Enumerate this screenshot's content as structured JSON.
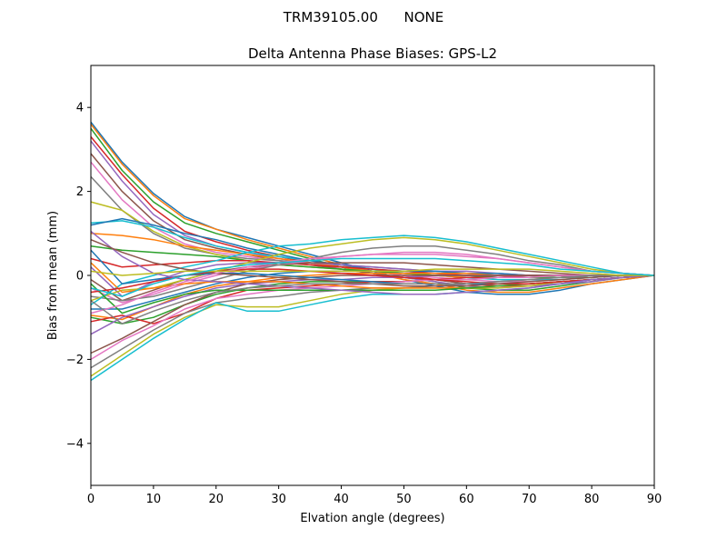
{
  "chart_data": {
    "type": "line",
    "suptitle": "TRM39105.00      NONE",
    "title": "Delta Antenna Phase Biases: GPS-L2",
    "xlabel": "Elvation angle (degrees)",
    "ylabel": "Bias from mean (mm)",
    "xlim": [
      0,
      90
    ],
    "ylim": [
      -5,
      5
    ],
    "xticks": [
      0,
      10,
      20,
      30,
      40,
      50,
      60,
      70,
      80,
      90
    ],
    "yticks": [
      -4,
      -2,
      0,
      2,
      4
    ],
    "ytick_labels": [
      "−4",
      "−2",
      "0",
      "2",
      "4"
    ],
    "grid": false,
    "legend": "none",
    "x": [
      0,
      5,
      10,
      15,
      20,
      25,
      30,
      35,
      40,
      45,
      50,
      55,
      60,
      65,
      70,
      75,
      80,
      85,
      90
    ],
    "series": [
      {
        "values": [
          3.65,
          2.7,
          1.95,
          1.4,
          1.1,
          0.9,
          0.7,
          0.5,
          0.3,
          0.1,
          -0.1,
          -0.25,
          -0.4,
          -0.45,
          -0.45,
          -0.35,
          -0.2,
          -0.1,
          0.0
        ]
      },
      {
        "values": [
          3.6,
          2.65,
          1.9,
          1.35,
          1.1,
          0.85,
          0.65,
          0.45,
          0.25,
          0.05,
          -0.1,
          -0.2,
          -0.35,
          -0.4,
          -0.4,
          -0.3,
          -0.2,
          -0.1,
          0.0
        ]
      },
      {
        "values": [
          3.5,
          2.5,
          1.75,
          1.25,
          1.0,
          0.8,
          0.6,
          0.4,
          0.2,
          0.05,
          -0.05,
          -0.15,
          -0.3,
          -0.35,
          -0.35,
          -0.25,
          -0.15,
          -0.05,
          0.0
        ]
      },
      {
        "values": [
          3.3,
          2.4,
          1.6,
          1.05,
          0.8,
          0.6,
          0.45,
          0.3,
          0.2,
          0.1,
          0.0,
          -0.1,
          -0.2,
          -0.25,
          -0.25,
          -0.2,
          -0.1,
          -0.05,
          0.0
        ]
      },
      {
        "values": [
          3.2,
          2.25,
          1.45,
          0.95,
          0.7,
          0.55,
          0.4,
          0.3,
          0.15,
          0.05,
          -0.05,
          -0.15,
          -0.25,
          -0.3,
          -0.25,
          -0.2,
          -0.15,
          -0.05,
          0.0
        ]
      },
      {
        "values": [
          2.9,
          2.0,
          1.3,
          0.85,
          0.65,
          0.5,
          0.35,
          0.25,
          0.15,
          0.05,
          -0.05,
          -0.1,
          -0.2,
          -0.2,
          -0.2,
          -0.15,
          -0.1,
          -0.05,
          0.0
        ]
      },
      {
        "values": [
          2.7,
          1.8,
          1.15,
          0.75,
          0.55,
          0.45,
          0.35,
          0.3,
          0.2,
          0.1,
          0.0,
          -0.05,
          -0.1,
          -0.15,
          -0.15,
          -0.1,
          -0.05,
          0.0,
          0.0
        ]
      },
      {
        "values": [
          2.35,
          1.55,
          1.0,
          0.65,
          0.5,
          0.4,
          0.35,
          0.3,
          0.25,
          0.2,
          0.15,
          0.1,
          0.05,
          0.0,
          -0.05,
          -0.05,
          -0.05,
          0.0,
          0.0
        ]
      },
      {
        "values": [
          1.75,
          1.55,
          1.05,
          0.7,
          0.5,
          0.35,
          0.25,
          0.2,
          0.15,
          0.1,
          0.05,
          0.0,
          -0.05,
          -0.05,
          -0.05,
          -0.05,
          0.0,
          0.0,
          0.0
        ]
      },
      {
        "values": [
          1.25,
          1.3,
          1.15,
          0.9,
          0.7,
          0.55,
          0.45,
          0.35,
          0.25,
          0.15,
          0.05,
          0.0,
          -0.05,
          -0.1,
          -0.1,
          -0.1,
          -0.05,
          0.0,
          0.0
        ]
      },
      {
        "values": [
          1.2,
          1.35,
          1.2,
          1.0,
          0.85,
          0.65,
          0.5,
          0.35,
          0.25,
          0.15,
          0.1,
          0.05,
          0.0,
          -0.05,
          -0.05,
          -0.05,
          0.0,
          0.0,
          0.0
        ]
      },
      {
        "values": [
          1.0,
          0.95,
          0.85,
          0.7,
          0.6,
          0.5,
          0.4,
          0.3,
          0.2,
          0.1,
          0.05,
          0.0,
          -0.05,
          -0.05,
          -0.05,
          -0.05,
          0.0,
          0.0,
          0.0
        ]
      },
      {
        "values": [
          0.7,
          0.6,
          0.55,
          0.5,
          0.45,
          0.35,
          0.25,
          0.2,
          0.15,
          0.1,
          0.05,
          0.0,
          0.0,
          -0.05,
          -0.05,
          -0.05,
          0.0,
          0.0,
          0.0
        ]
      },
      {
        "values": [
          0.4,
          0.2,
          0.25,
          0.3,
          0.35,
          0.35,
          0.3,
          0.25,
          0.2,
          0.15,
          0.1,
          0.05,
          0.0,
          0.0,
          0.0,
          0.0,
          0.0,
          0.0,
          0.0
        ]
      },
      {
        "values": [
          0.2,
          -0.5,
          -0.15,
          0.1,
          0.25,
          0.3,
          0.3,
          0.3,
          0.25,
          0.2,
          0.15,
          0.1,
          0.1,
          0.05,
          0.0,
          0.0,
          0.0,
          0.0,
          0.0
        ]
      },
      {
        "values": [
          -0.1,
          -0.6,
          -0.35,
          -0.1,
          0.1,
          0.2,
          0.25,
          0.3,
          0.3,
          0.3,
          0.3,
          0.25,
          0.2,
          0.15,
          0.1,
          0.05,
          0.0,
          0.0,
          0.0
        ]
      },
      {
        "values": [
          -0.3,
          -0.65,
          -0.45,
          -0.2,
          0.0,
          0.15,
          0.25,
          0.35,
          0.45,
          0.5,
          0.55,
          0.55,
          0.5,
          0.4,
          0.3,
          0.2,
          0.1,
          0.05,
          0.0
        ]
      },
      {
        "values": [
          -0.5,
          -0.6,
          -0.5,
          -0.3,
          -0.1,
          0.1,
          0.25,
          0.4,
          0.55,
          0.65,
          0.7,
          0.7,
          0.6,
          0.5,
          0.35,
          0.25,
          0.1,
          0.05,
          0.0
        ]
      },
      {
        "values": [
          -0.6,
          -0.35,
          -0.3,
          -0.1,
          0.1,
          0.3,
          0.5,
          0.65,
          0.75,
          0.85,
          0.9,
          0.85,
          0.75,
          0.6,
          0.45,
          0.3,
          0.15,
          0.05,
          0.0
        ]
      },
      {
        "values": [
          -0.7,
          -0.2,
          0.0,
          0.2,
          0.35,
          0.55,
          0.7,
          0.75,
          0.85,
          0.9,
          0.95,
          0.9,
          0.8,
          0.65,
          0.5,
          0.35,
          0.2,
          0.05,
          0.0
        ]
      },
      {
        "values": [
          -0.8,
          -0.8,
          -0.6,
          -0.4,
          -0.2,
          -0.05,
          0.05,
          0.1,
          0.1,
          0.1,
          0.1,
          0.1,
          0.05,
          0.05,
          0.0,
          0.0,
          0.0,
          0.0,
          0.0
        ]
      },
      {
        "values": [
          -0.95,
          -1.05,
          -0.75,
          -0.45,
          -0.25,
          -0.15,
          -0.05,
          0.0,
          0.05,
          0.05,
          0.05,
          0.05,
          0.05,
          0.0,
          0.0,
          0.0,
          0.0,
          0.0,
          0.0
        ]
      },
      {
        "values": [
          -1.0,
          -1.15,
          -1.0,
          -0.7,
          -0.45,
          -0.3,
          -0.2,
          -0.15,
          -0.15,
          -0.15,
          -0.15,
          -0.1,
          -0.1,
          -0.05,
          -0.05,
          0.0,
          0.0,
          0.0,
          0.0
        ]
      },
      {
        "values": [
          -1.1,
          -0.95,
          -1.15,
          -0.9,
          -0.55,
          -0.35,
          -0.3,
          -0.25,
          -0.2,
          -0.15,
          -0.15,
          -0.1,
          -0.05,
          -0.05,
          0.0,
          0.0,
          0.0,
          0.0,
          0.0
        ]
      },
      {
        "values": [
          -1.4,
          -1.0,
          -0.75,
          -0.5,
          -0.3,
          -0.2,
          -0.15,
          -0.1,
          -0.1,
          -0.05,
          -0.05,
          0.0,
          0.0,
          0.0,
          0.0,
          0.0,
          0.0,
          0.0,
          0.0
        ]
      },
      {
        "values": [
          -1.85,
          -1.5,
          -1.1,
          -0.7,
          -0.4,
          -0.2,
          -0.1,
          -0.05,
          0.0,
          0.0,
          0.0,
          0.0,
          0.0,
          0.0,
          0.0,
          0.0,
          0.0,
          0.0,
          0.0
        ]
      },
      {
        "values": [
          -2.0,
          -1.55,
          -1.2,
          -0.8,
          -0.55,
          -0.45,
          -0.35,
          -0.3,
          -0.25,
          -0.2,
          -0.15,
          -0.1,
          -0.1,
          -0.05,
          -0.05,
          0.0,
          0.0,
          0.0,
          0.0
        ]
      },
      {
        "values": [
          -2.2,
          -1.75,
          -1.3,
          -0.9,
          -0.65,
          -0.55,
          -0.5,
          -0.4,
          -0.35,
          -0.3,
          -0.3,
          -0.25,
          -0.2,
          -0.15,
          -0.1,
          -0.05,
          0.0,
          0.0,
          0.0
        ]
      },
      {
        "values": [
          -2.4,
          -1.9,
          -1.4,
          -1.0,
          -0.7,
          -0.75,
          -0.75,
          -0.6,
          -0.45,
          -0.35,
          -0.3,
          -0.3,
          -0.3,
          -0.3,
          -0.25,
          -0.15,
          -0.1,
          -0.05,
          0.0
        ]
      },
      {
        "values": [
          -2.5,
          -2.0,
          -1.5,
          -1.05,
          -0.65,
          -0.85,
          -0.85,
          -0.7,
          -0.55,
          -0.45,
          -0.45,
          -0.45,
          -0.4,
          -0.35,
          -0.3,
          -0.2,
          -0.1,
          -0.05,
          0.0
        ]
      },
      {
        "values": [
          0.6,
          -0.2,
          -0.1,
          0.0,
          0.05,
          0.05,
          0.0,
          -0.05,
          -0.1,
          -0.15,
          -0.2,
          -0.2,
          -0.2,
          -0.2,
          -0.2,
          -0.15,
          -0.1,
          -0.05,
          0.0
        ]
      },
      {
        "values": [
          0.3,
          -0.4,
          -0.3,
          -0.2,
          -0.15,
          -0.15,
          -0.15,
          -0.2,
          -0.25,
          -0.3,
          -0.3,
          -0.3,
          -0.3,
          -0.25,
          -0.2,
          -0.15,
          -0.1,
          -0.05,
          0.0
        ]
      },
      {
        "values": [
          -0.2,
          -0.9,
          -0.65,
          -0.45,
          -0.35,
          -0.35,
          -0.35,
          -0.35,
          -0.35,
          -0.35,
          -0.35,
          -0.35,
          -0.3,
          -0.25,
          -0.2,
          -0.15,
          -0.1,
          -0.05,
          0.0
        ]
      },
      {
        "values": [
          -0.4,
          -0.3,
          -0.15,
          0.0,
          0.1,
          0.15,
          0.15,
          0.1,
          0.05,
          0.0,
          -0.05,
          -0.1,
          -0.15,
          -0.2,
          -0.2,
          -0.15,
          -0.1,
          -0.05,
          0.0
        ]
      },
      {
        "values": [
          1.05,
          0.45,
          0.05,
          -0.1,
          -0.15,
          -0.2,
          -0.25,
          -0.3,
          -0.35,
          -0.4,
          -0.45,
          -0.45,
          -0.4,
          -0.35,
          -0.3,
          -0.2,
          -0.1,
          -0.05,
          0.0
        ]
      },
      {
        "values": [
          0.85,
          0.55,
          0.3,
          0.15,
          0.05,
          0.0,
          -0.05,
          -0.1,
          -0.15,
          -0.2,
          -0.25,
          -0.25,
          -0.25,
          -0.2,
          -0.15,
          -0.1,
          -0.05,
          0.0,
          0.0
        ]
      },
      {
        "values": [
          -0.9,
          -0.7,
          -0.4,
          -0.15,
          0.05,
          0.2,
          0.3,
          0.4,
          0.45,
          0.5,
          0.5,
          0.5,
          0.45,
          0.4,
          0.3,
          0.2,
          0.1,
          0.05,
          0.0
        ]
      },
      {
        "values": [
          -0.6,
          -1.15,
          -0.85,
          -0.6,
          -0.4,
          -0.3,
          -0.25,
          -0.2,
          -0.2,
          -0.2,
          -0.2,
          -0.2,
          -0.2,
          -0.15,
          -0.1,
          -0.05,
          0.0,
          0.0,
          0.0
        ]
      },
      {
        "values": [
          0.1,
          0.0,
          0.05,
          0.1,
          0.1,
          0.1,
          0.1,
          0.1,
          0.1,
          0.1,
          0.1,
          0.15,
          0.15,
          0.15,
          0.15,
          0.1,
          0.05,
          0.0,
          0.0
        ]
      },
      {
        "values": [
          -0.3,
          -0.5,
          -0.2,
          0.0,
          0.15,
          0.25,
          0.3,
          0.35,
          0.4,
          0.4,
          0.4,
          0.4,
          0.35,
          0.3,
          0.25,
          0.15,
          0.1,
          0.05,
          0.0
        ]
      }
    ]
  }
}
